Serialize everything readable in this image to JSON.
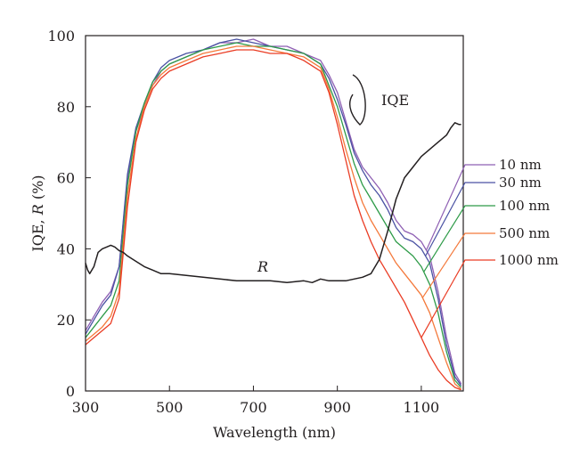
{
  "chart_data": {
    "type": "line",
    "xlabel": "Wavelength (nm)",
    "ylabel_parts": [
      "IQE, ",
      "R",
      " (%)"
    ],
    "xlim": [
      300,
      1200
    ],
    "ylim": [
      0,
      100
    ],
    "x_ticks": [
      300,
      500,
      700,
      900,
      1100
    ],
    "y_ticks": [
      0,
      20,
      40,
      60,
      80,
      100
    ],
    "grid": false,
    "legend_position": "right",
    "annotations": {
      "iqe_label": "IQE",
      "r_label": "R"
    },
    "series": [
      {
        "name": "10 nm",
        "color": "#8e5fb3",
        "group": "IQE",
        "x": [
          300,
          320,
          340,
          360,
          380,
          400,
          420,
          440,
          460,
          480,
          500,
          540,
          580,
          620,
          660,
          700,
          740,
          780,
          820,
          860,
          880,
          900,
          920,
          940,
          960,
          980,
          1000,
          1020,
          1040,
          1060,
          1080,
          1100,
          1120,
          1140,
          1160,
          1180,
          1195
        ],
        "y": [
          17,
          21,
          25,
          28,
          35,
          60,
          73,
          80,
          86,
          90,
          92,
          94,
          96,
          98,
          98,
          99,
          97,
          97,
          95,
          93,
          89,
          84,
          76,
          68,
          63,
          60,
          57,
          53,
          48,
          45,
          44,
          42,
          38,
          28,
          15,
          5,
          2
        ]
      },
      {
        "name": "30 nm",
        "color": "#4a52a3",
        "group": "IQE",
        "x": [
          300,
          320,
          340,
          360,
          380,
          400,
          420,
          440,
          460,
          480,
          500,
          540,
          580,
          620,
          660,
          700,
          740,
          780,
          820,
          860,
          880,
          900,
          920,
          940,
          960,
          980,
          1000,
          1020,
          1040,
          1060,
          1080,
          1100,
          1120,
          1140,
          1160,
          1180,
          1195
        ],
        "y": [
          16,
          20,
          24,
          27,
          35,
          61,
          74,
          81,
          87,
          91,
          93,
          95,
          96,
          98,
          99,
          98,
          97,
          96,
          95,
          92,
          88,
          82,
          75,
          67,
          62,
          58,
          55,
          51,
          46,
          43,
          42,
          40,
          36,
          26,
          13,
          4,
          1.5
        ]
      },
      {
        "name": "100 nm",
        "color": "#2e9b48",
        "group": "IQE",
        "x": [
          300,
          320,
          340,
          360,
          380,
          400,
          420,
          440,
          460,
          480,
          500,
          540,
          580,
          620,
          660,
          700,
          740,
          780,
          820,
          860,
          880,
          900,
          920,
          940,
          960,
          980,
          1000,
          1020,
          1040,
          1060,
          1080,
          1100,
          1120,
          1140,
          1160,
          1180,
          1195
        ],
        "y": [
          15,
          18,
          21,
          24,
          31,
          58,
          73,
          81,
          87,
          90,
          92,
          94,
          96,
          97,
          98,
          97,
          97,
          96,
          95,
          92,
          86,
          80,
          72,
          64,
          58,
          54,
          50,
          46,
          42,
          40,
          38,
          35,
          30,
          22,
          11,
          3,
          1
        ]
      },
      {
        "name": "500 nm",
        "color": "#f4793b",
        "group": "IQE",
        "x": [
          300,
          320,
          340,
          360,
          380,
          400,
          420,
          440,
          460,
          480,
          500,
          540,
          580,
          620,
          660,
          700,
          740,
          780,
          820,
          860,
          880,
          900,
          920,
          940,
          960,
          980,
          1000,
          1020,
          1040,
          1060,
          1080,
          1100,
          1120,
          1140,
          1160,
          1180,
          1195
        ],
        "y": [
          14,
          16,
          18,
          21,
          28,
          55,
          71,
          80,
          86,
          89,
          91,
          93,
          95,
          96,
          97,
          97,
          96,
          95,
          94,
          91,
          85,
          77,
          68,
          60,
          53,
          48,
          44,
          40,
          36,
          33,
          30,
          27,
          22,
          15,
          8,
          2,
          0.5
        ]
      },
      {
        "name": "1000 nm",
        "color": "#ea3c24",
        "group": "IQE",
        "x": [
          300,
          320,
          340,
          360,
          380,
          400,
          420,
          440,
          460,
          480,
          500,
          540,
          580,
          620,
          660,
          700,
          740,
          780,
          820,
          860,
          880,
          900,
          920,
          940,
          960,
          980,
          1000,
          1020,
          1040,
          1060,
          1080,
          1100,
          1120,
          1140,
          1160,
          1180,
          1195
        ],
        "y": [
          13,
          15,
          17,
          19,
          26,
          52,
          70,
          79,
          85,
          88,
          90,
          92,
          94,
          95,
          96,
          96,
          95,
          95,
          93,
          90,
          84,
          75,
          65,
          55,
          48,
          42,
          37,
          33,
          29,
          25,
          20,
          15,
          10,
          6,
          3,
          1,
          0.3
        ]
      },
      {
        "name": "R",
        "color": "#231f20",
        "group": "R",
        "x": [
          300,
          305,
          310,
          320,
          330,
          340,
          350,
          360,
          370,
          380,
          390,
          400,
          420,
          440,
          460,
          480,
          500,
          540,
          580,
          620,
          660,
          700,
          740,
          780,
          820,
          840,
          860,
          880,
          900,
          920,
          940,
          960,
          980,
          1000,
          1020,
          1040,
          1060,
          1080,
          1100,
          1120,
          1140,
          1160,
          1170,
          1180,
          1190,
          1195
        ],
        "y": [
          36,
          34,
          33,
          35,
          39,
          40,
          40.5,
          41,
          40.5,
          39.5,
          39,
          38,
          36.5,
          35,
          34,
          33,
          33,
          32.5,
          32,
          31.5,
          31,
          31,
          31,
          30.5,
          31,
          30.5,
          31.5,
          31,
          31,
          31,
          31.5,
          32,
          33,
          37,
          45,
          54,
          60,
          63,
          66,
          68,
          70,
          72,
          74,
          75.5,
          75,
          75
        ]
      }
    ]
  }
}
